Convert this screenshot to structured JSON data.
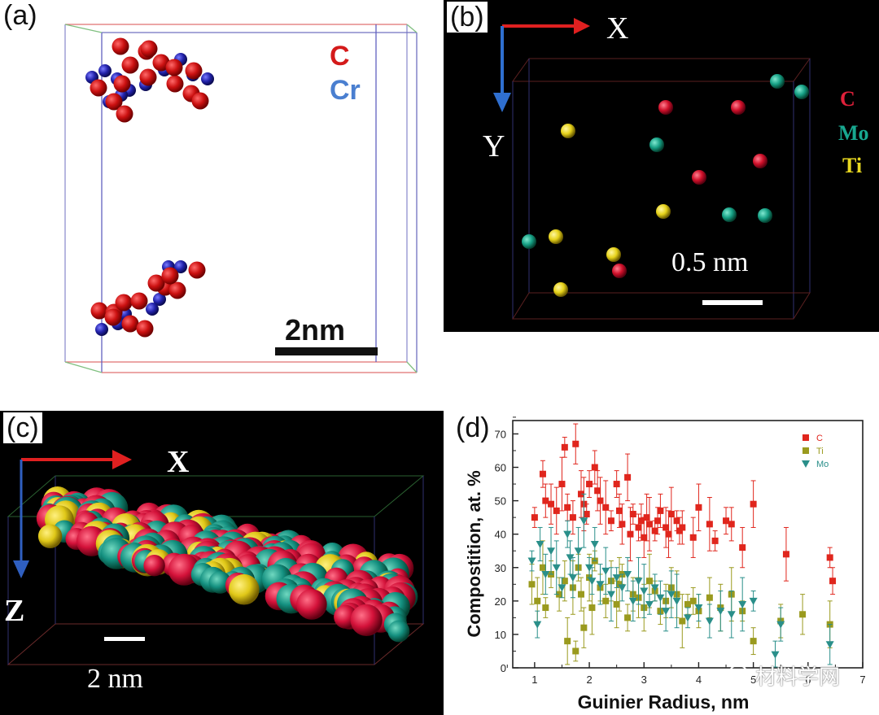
{
  "panels": {
    "a": {
      "label": "(a)",
      "legend": [
        "C",
        "Cr"
      ],
      "scale_bar": "2nm",
      "colors": {
        "C": "#cc1111",
        "Cr": "#2222aa"
      }
    },
    "b": {
      "label": "(b)",
      "axis_x": "X",
      "axis_y": "Y",
      "legend": [
        "C",
        "Mo",
        "Ti"
      ],
      "scale_bar": "0.5 nm",
      "colors": {
        "C": "#d0102a",
        "Mo": "#16a085",
        "Ti": "#e6d21a"
      }
    },
    "c": {
      "label": "(c)",
      "axis_x": "X",
      "axis_z": "Z",
      "scale_bar": "2 nm"
    },
    "d": {
      "label": "(d)"
    }
  },
  "watermark": "材料学网",
  "chart_data": {
    "type": "scatter",
    "title": "",
    "xlabel": "Guinier Radius, nm",
    "ylabel": "Compostition, at. %",
    "xlim": [
      0.6,
      7
    ],
    "ylim": [
      0,
      74
    ],
    "xticks": [
      "1",
      "2",
      "3",
      "4",
      "5",
      "6",
      "7"
    ],
    "yticks": [
      "0",
      "10",
      "20",
      "30",
      "40",
      "50",
      "60",
      "70"
    ],
    "legend": [
      "C",
      "Ti",
      "Mo"
    ],
    "series": [
      {
        "name": "C",
        "marker": "square",
        "color": "#e0261d",
        "x": [
          1.0,
          1.15,
          1.2,
          1.3,
          1.4,
          1.5,
          1.55,
          1.6,
          1.7,
          1.75,
          1.85,
          1.9,
          1.95,
          2.0,
          2.1,
          2.15,
          2.2,
          2.3,
          2.4,
          2.5,
          2.55,
          2.6,
          2.7,
          2.75,
          2.8,
          2.9,
          2.95,
          3.0,
          3.05,
          3.1,
          3.2,
          3.25,
          3.3,
          3.4,
          3.45,
          3.5,
          3.6,
          3.65,
          3.7,
          3.9,
          4.0,
          4.2,
          4.3,
          4.5,
          4.6,
          4.8,
          5.0,
          5.6,
          6.4,
          6.45
        ],
        "y": [
          45,
          58,
          50,
          49,
          47,
          55,
          66,
          48,
          45,
          67,
          52,
          49,
          46,
          55,
          60,
          53,
          50,
          48,
          44,
          55,
          47,
          43,
          57,
          40,
          46,
          42,
          44,
          39,
          45,
          43,
          41,
          44,
          47,
          42,
          40,
          46,
          44,
          41,
          42,
          39,
          48,
          43,
          38,
          44,
          43,
          36,
          49,
          34,
          33,
          26
        ]
      },
      {
        "name": "Ti",
        "marker": "square",
        "color": "#9a9a1e",
        "x": [
          0.95,
          1.05,
          1.15,
          1.2,
          1.3,
          1.45,
          1.55,
          1.6,
          1.7,
          1.75,
          1.8,
          1.85,
          1.9,
          2.0,
          2.05,
          2.1,
          2.2,
          2.3,
          2.4,
          2.5,
          2.55,
          2.6,
          2.7,
          2.8,
          2.9,
          3.0,
          3.1,
          3.2,
          3.3,
          3.4,
          3.5,
          3.6,
          3.7,
          3.8,
          3.9,
          4.0,
          4.2,
          4.4,
          4.6,
          4.8,
          5.0,
          5.5,
          5.9,
          6.4
        ],
        "y": [
          25,
          20,
          30,
          18,
          28,
          22,
          26,
          8,
          24,
          5,
          30,
          22,
          12,
          27,
          18,
          32,
          24,
          20,
          26,
          19,
          25,
          28,
          15,
          22,
          21,
          18,
          26,
          23,
          17,
          20,
          24,
          22,
          14,
          19,
          20,
          17,
          21,
          18,
          22,
          17,
          8,
          14,
          16,
          13
        ]
      },
      {
        "name": "Mo",
        "marker": "triangle",
        "color": "#2a8f8a",
        "x": [
          0.95,
          1.05,
          1.1,
          1.2,
          1.3,
          1.4,
          1.5,
          1.6,
          1.65,
          1.7,
          1.8,
          1.9,
          2.0,
          2.05,
          2.1,
          2.2,
          2.3,
          2.4,
          2.5,
          2.6,
          2.7,
          2.8,
          2.9,
          3.0,
          3.1,
          3.2,
          3.3,
          3.4,
          3.5,
          3.6,
          3.8,
          4.0,
          4.2,
          4.4,
          4.6,
          4.8,
          5.0,
          5.4,
          5.5,
          6.4
        ],
        "y": [
          32,
          13,
          37,
          28,
          35,
          30,
          24,
          40,
          33,
          27,
          35,
          44,
          30,
          26,
          37,
          25,
          29,
          22,
          27,
          24,
          28,
          20,
          26,
          23,
          19,
          24,
          21,
          17,
          22,
          20,
          15,
          18,
          14,
          17,
          16,
          19,
          20,
          4,
          13,
          7
        ]
      }
    ]
  }
}
